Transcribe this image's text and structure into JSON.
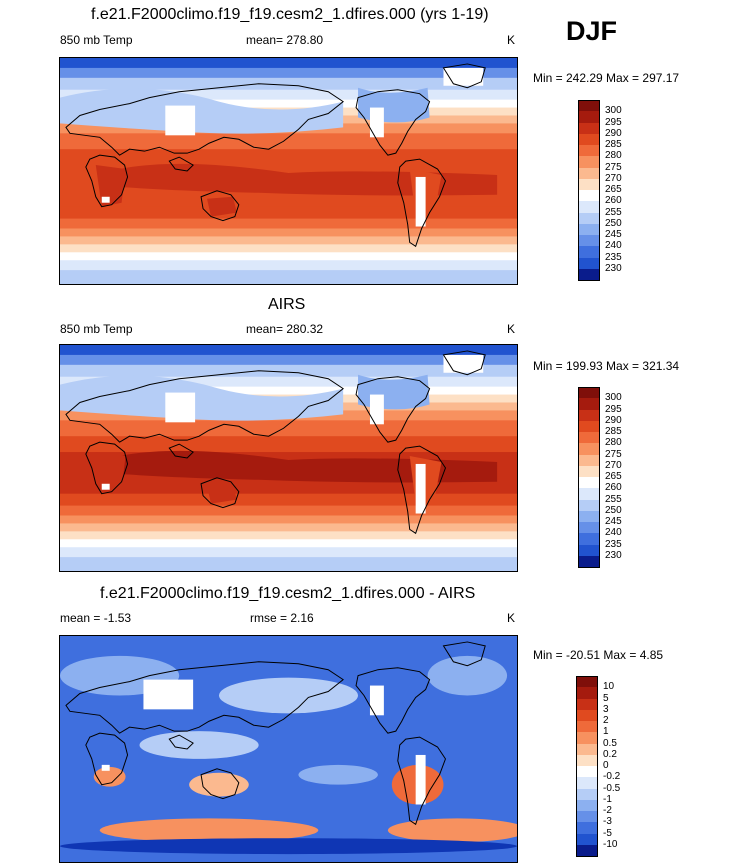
{
  "season": "DJF",
  "units": "K",
  "colors": {
    "warm": [
      "#fde0c5",
      "#fbb98f",
      "#f7915f",
      "#ef6a3a",
      "#e04a1f",
      "#c83016",
      "#a51b0e",
      "#7f0f0a"
    ],
    "neutral": "#ffffff",
    "cool": [
      "#dce8fb",
      "#b5cdf6",
      "#8cb0f0",
      "#6690e8",
      "#3f6fde",
      "#2153cf",
      "#0f36b4",
      "#0a1c8c",
      "#050f5e"
    ]
  },
  "panels": [
    {
      "title": "f.e21.F2000climo.f19_f19.cesm2_1.dfires.000 (yrs 1-19)",
      "left_label": "850 mb Temp",
      "center_label": "mean= 278.80",
      "units": "K",
      "minmax": "Min = 242.29 Max = 297.17"
    },
    {
      "title": "AIRS",
      "left_label": "850 mb Temp",
      "center_label": "mean= 280.32",
      "units": "K",
      "minmax": "Min = 199.93 Max = 321.34"
    },
    {
      "title": "f.e21.F2000climo.f19_f19.cesm2_1.dfires.000 - AIRS",
      "left_label": "mean =  -1.53",
      "center_label": "rmse =   2.16",
      "units": "K",
      "minmax": "Min = -20.51 Max =   4.85"
    }
  ],
  "chart_data": [
    {
      "type": "heatmap",
      "title": "f.e21.F2000climo.f19_f19.cesm2_1.dfires.000 (yrs 1-19)",
      "variable": "850 mb Temp",
      "mean": 278.8,
      "min": 242.29,
      "max": 297.17,
      "units": "K",
      "colorbar_levels": [
        "300",
        "295",
        "290",
        "285",
        "280",
        "275",
        "270",
        "265",
        "260",
        "255",
        "250",
        "245",
        "240",
        "235",
        "230"
      ]
    },
    {
      "type": "heatmap",
      "title": "AIRS",
      "variable": "850 mb Temp",
      "mean": 280.32,
      "min": 199.93,
      "max": 321.34,
      "units": "K",
      "colorbar_levels": [
        "300",
        "295",
        "290",
        "285",
        "280",
        "275",
        "270",
        "265",
        "260",
        "255",
        "250",
        "245",
        "240",
        "235",
        "230"
      ]
    },
    {
      "type": "heatmap",
      "title": "f.e21.F2000climo.f19_f19.cesm2_1.dfires.000 - AIRS",
      "mean": -1.53,
      "rmse": 2.16,
      "min": -20.51,
      "max": 4.85,
      "units": "K",
      "colorbar_levels": [
        "10",
        "5",
        "3",
        "2",
        "1",
        "0.5",
        "0.2",
        "0",
        "-0.2",
        "-0.5",
        "-1",
        "-2",
        "-3",
        "-5",
        "-10"
      ]
    }
  ]
}
